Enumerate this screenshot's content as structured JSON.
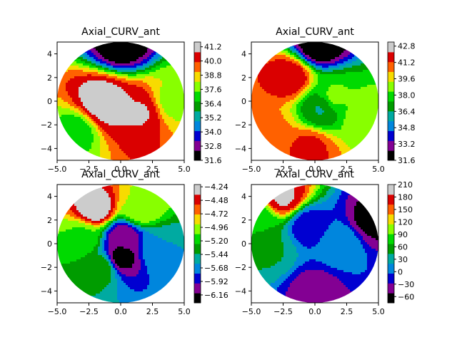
{
  "chart_data": [
    {
      "type": "heatmap",
      "subtype": "filled-contour-polar-disk",
      "title": "Axial_CURV_ant",
      "xlim": [
        -5,
        5
      ],
      "ylim": [
        -5,
        5
      ],
      "x_ticks": [
        "−5.0",
        "−2.5",
        "0.0",
        "2.5",
        "5.0"
      ],
      "y_ticks": [
        "4",
        "2",
        "0",
        "−2",
        "−4"
      ],
      "colorbar_ticks": [
        "41.2",
        "40.0",
        "38.8",
        "37.6",
        "36.4",
        "35.2",
        "34.0",
        "32.8",
        "31.6"
      ],
      "colorbar_range": [
        31.6,
        41.6
      ],
      "colormap": "nipy_spectral",
      "features": [
        {
          "x": 0.0,
          "y": 4.8,
          "value": 31.6
        },
        {
          "x": -1.5,
          "y": 0.0,
          "value": 41.4
        },
        {
          "x": -1.0,
          "y": -0.5,
          "value": 41.0
        },
        {
          "x": 1.5,
          "y": -1.0,
          "value": 40.8
        },
        {
          "x": -3.5,
          "y": -2.5,
          "value": 37.0
        },
        {
          "x": 4.2,
          "y": 0.0,
          "value": 38.0
        }
      ]
    },
    {
      "type": "heatmap",
      "subtype": "filled-contour-polar-disk",
      "title": "Axial_CURV_ant",
      "xlim": [
        -5,
        5
      ],
      "ylim": [
        -5,
        5
      ],
      "x_ticks": [
        "−5.0",
        "−2.5",
        "0.0",
        "2.5",
        "5.0"
      ],
      "y_ticks": [
        "4",
        "2",
        "0",
        "−2",
        "−4"
      ],
      "colorbar_ticks": [
        "42.8",
        "41.2",
        "39.6",
        "38.0",
        "36.4",
        "34.8",
        "33.2",
        "31.6"
      ],
      "colorbar_range": [
        31.6,
        43.2
      ],
      "colormap": "nipy_spectral",
      "features": [
        {
          "x": 0.3,
          "y": 4.8,
          "value": 31.6
        },
        {
          "x": -2.0,
          "y": 2.0,
          "value": 42.0
        },
        {
          "x": 0.5,
          "y": -0.6,
          "value": 36.4
        },
        {
          "x": 1.5,
          "y": 0.3,
          "value": 38.5
        },
        {
          "x": -3.5,
          "y": -2.5,
          "value": 40.5
        },
        {
          "x": -0.5,
          "y": -4.0,
          "value": 41.5
        },
        {
          "x": 4.0,
          "y": -1.5,
          "value": 39.0
        }
      ]
    },
    {
      "type": "heatmap",
      "subtype": "filled-contour-polar-disk",
      "title": "Axial_CURV_ant",
      "xlim": [
        -5,
        5
      ],
      "ylim": [
        -5,
        5
      ],
      "x_ticks": [
        "−5.0",
        "−2.5",
        "0.0",
        "2.5",
        "5.0"
      ],
      "y_ticks": [
        "4",
        "2",
        "0",
        "−2",
        "−4"
      ],
      "colorbar_ticks": [
        "−4.24",
        "−4.48",
        "−4.72",
        "−4.96",
        "−5.20",
        "−5.44",
        "−5.68",
        "−5.92",
        "−6.16"
      ],
      "colorbar_range": [
        -6.3,
        -4.2
      ],
      "colormap": "nipy_spectral",
      "features": [
        {
          "x": -2.0,
          "y": 3.0,
          "value": -4.24
        },
        {
          "x": 1.5,
          "y": 3.0,
          "value": -4.9
        },
        {
          "x": 0.2,
          "y": 0.5,
          "value": -6.1
        },
        {
          "x": 0.0,
          "y": -1.2,
          "value": -6.2
        },
        {
          "x": -3.0,
          "y": 0.5,
          "value": -5.1
        },
        {
          "x": 3.0,
          "y": -0.5,
          "value": -5.6
        },
        {
          "x": -1.5,
          "y": -2.0,
          "value": -5.3
        }
      ]
    },
    {
      "type": "heatmap",
      "subtype": "filled-contour-polar-disk",
      "title": "Axial_CURV_ant",
      "xlim": [
        -5,
        5
      ],
      "ylim": [
        -5,
        5
      ],
      "x_ticks": [
        "−5.0",
        "−2.5",
        "0.0",
        "2.5",
        "5.0"
      ],
      "y_ticks": [
        "4",
        "2",
        "0",
        "−2",
        "−4"
      ],
      "colorbar_ticks": [
        "210",
        "180",
        "150",
        "120",
        "90",
        "60",
        "30",
        "0",
        "−30",
        "−60"
      ],
      "colorbar_range": [
        -75,
        210
      ],
      "colormap": "nipy_spectral",
      "features": [
        {
          "x": -2.5,
          "y": 4.0,
          "value": 190
        },
        {
          "x": 4.5,
          "y": 2.0,
          "value": -60
        },
        {
          "x": -0.5,
          "y": 1.5,
          "value": -20
        },
        {
          "x": 0.0,
          "y": -4.0,
          "value": -40
        },
        {
          "x": 2.0,
          "y": 0.0,
          "value": 15
        },
        {
          "x": -3.5,
          "y": -0.5,
          "value": 45
        },
        {
          "x": -4.5,
          "y": 2.0,
          "value": 70
        }
      ]
    }
  ]
}
